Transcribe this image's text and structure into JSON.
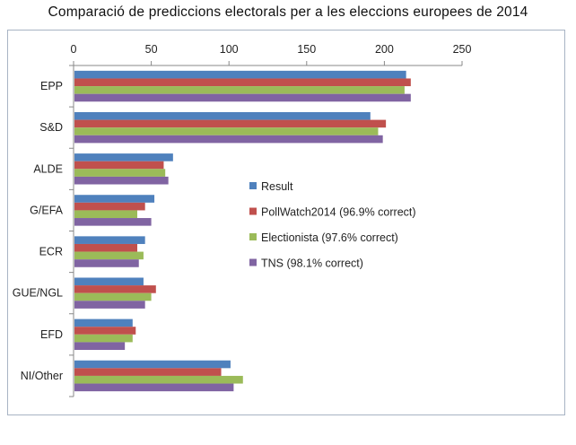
{
  "chart_data": {
    "type": "bar",
    "orientation": "horizontal",
    "title": "Comparació de prediccions electorals per a les eleccions europees de 2014",
    "xlabel": "",
    "ylabel": "",
    "xlim": [
      0,
      250
    ],
    "xticks": [
      0,
      50,
      100,
      150,
      200,
      250
    ],
    "categories": [
      "EPP",
      "S&D",
      "ALDE",
      "G/EFA",
      "ECR",
      "GUE/NGL",
      "EFD",
      "NI/Other"
    ],
    "series": [
      {
        "name": "Result",
        "color": "#4f81bd",
        "values": [
          214,
          191,
          64,
          52,
          46,
          45,
          38,
          101
        ]
      },
      {
        "name": "PollWatch2014 (96.9% correct)",
        "color": "#c0504d",
        "values": [
          217,
          201,
          58,
          46,
          41,
          53,
          40,
          95
        ]
      },
      {
        "name": "Electionista (97.6% correct)",
        "color": "#9bbb59",
        "values": [
          213,
          196,
          59,
          41,
          45,
          50,
          38,
          109
        ]
      },
      {
        "name": "TNS (98.1% correct)",
        "color": "#8064a2",
        "values": [
          217,
          199,
          61,
          50,
          42,
          46,
          33,
          103
        ]
      }
    ],
    "grid": false,
    "legend": "center-right"
  }
}
